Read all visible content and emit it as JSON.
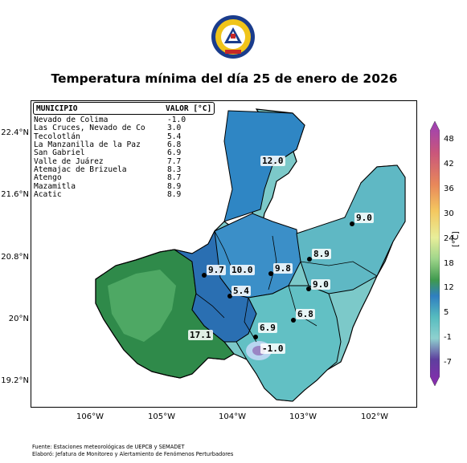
{
  "logo": {
    "icon": "civil-protection-seal-icon",
    "colors": [
      "#1a3c8c",
      "#f0c419",
      "#c62828"
    ]
  },
  "title": "Temperatura mínima del día 25 de enero de 2026",
  "table": {
    "header_municipio": "MUNICIPIO",
    "header_valor": "VALOR [°C]",
    "rows": [
      {
        "name": "Nevado de Colima",
        "value": "-1.0"
      },
      {
        "name": "Las Cruces, Nevado de Co",
        "value": "3.0"
      },
      {
        "name": "Tecolotlán",
        "value": "5.4"
      },
      {
        "name": "La Manzanilla de la Paz",
        "value": "6.8"
      },
      {
        "name": "San Gabriel",
        "value": "6.9"
      },
      {
        "name": "Valle de Juárez",
        "value": "7.7"
      },
      {
        "name": "Atemajac de Brizuela",
        "value": "8.3"
      },
      {
        "name": "Atengo",
        "value": "8.7"
      },
      {
        "name": "Mazamitla",
        "value": "8.9"
      },
      {
        "name": "Acatic",
        "value": "8.9"
      }
    ]
  },
  "map_labels": [
    "12.0",
    "9.0",
    "8.9",
    "9.7",
    "10.0",
    "9.8",
    "9.0",
    "5.4",
    "6.8",
    "6.9",
    "17.1",
    "-1.0"
  ],
  "y_ticks": [
    "22.4°N",
    "21.6°N",
    "20.8°N",
    "20°N",
    "19.2°N"
  ],
  "x_ticks": [
    "106°W",
    "105°W",
    "104°W",
    "103°W",
    "102°W"
  ],
  "colorbar": {
    "unit": "[°C]",
    "ticks": [
      "48",
      "42",
      "36",
      "30",
      "24",
      "18",
      "12",
      "5",
      "-1",
      "-7"
    ],
    "colors": [
      "#9a3fb8",
      "#c86fc9",
      "#c9567b",
      "#e8885a",
      "#f4c860",
      "#e8ee9a",
      "#9fd58a",
      "#3f9a4e",
      "#56bcbf",
      "#2f7fc0",
      "#6bb6d8",
      "#8fd1cf",
      "#5e3f9e",
      "#8c2bb0"
    ]
  },
  "footer": {
    "source": "Fuente: Estaciones meteorológicas de UEPCB y SEMADET",
    "made_by": "Elaboró: Jefatura de Monitoreo y Alertamiento de Fenómenos Perturbadores"
  }
}
